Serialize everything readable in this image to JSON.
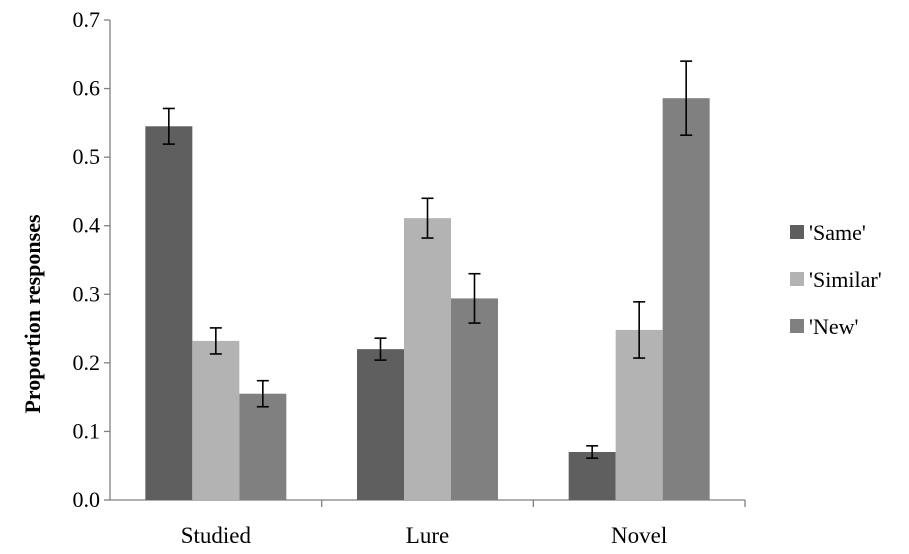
{
  "chart_data": {
    "type": "bar",
    "title": "",
    "xlabel": "",
    "ylabel": "Proportion responses",
    "categories": [
      "Studied",
      "Lure",
      "Novel"
    ],
    "ylim": [
      0,
      0.7
    ],
    "yticks": [
      0.0,
      0.1,
      0.2,
      0.3,
      0.4,
      0.5,
      0.6,
      0.7
    ],
    "ytick_labels": [
      "0.0",
      "0.1",
      "0.2",
      "0.3",
      "0.4",
      "0.5",
      "0.6",
      "0.7"
    ],
    "grid": false,
    "legend_position": "right",
    "series": [
      {
        "name": "'Same'",
        "color": "#5f5f5f",
        "values": [
          0.545,
          0.22,
          0.07
        ],
        "errors": [
          0.026,
          0.016,
          0.009
        ]
      },
      {
        "name": "'Similar'",
        "color": "#b3b3b3",
        "values": [
          0.232,
          0.411,
          0.248
        ],
        "errors": [
          0.019,
          0.029,
          0.041
        ]
      },
      {
        "name": "'New'",
        "color": "#808080",
        "values": [
          0.155,
          0.294,
          0.586
        ],
        "errors": [
          0.019,
          0.036,
          0.054
        ]
      }
    ]
  }
}
